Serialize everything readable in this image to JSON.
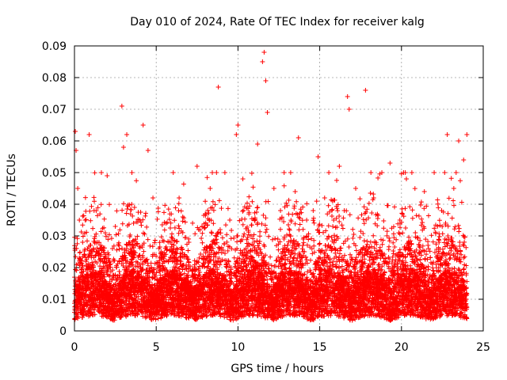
{
  "chart_data": {
    "type": "scatter",
    "title": "Day 010 of 2024, Rate Of TEC Index for receiver kalg",
    "xlabel": "GPS time / hours",
    "ylabel": "ROTI / TECUs",
    "xlim": [
      0,
      25
    ],
    "ylim": [
      0,
      0.09
    ],
    "xticks": [
      "0",
      "5",
      "10",
      "15",
      "20",
      "25"
    ],
    "yticks": [
      "0",
      "0.01",
      "0.02",
      "0.03",
      "0.04",
      "0.05",
      "0.06",
      "0.07",
      "0.08",
      "0.09"
    ],
    "grid": true,
    "marker": "+",
    "color": "#ff0000",
    "series": [
      {
        "name": "ROTI",
        "x": [
          0.05,
          0.1,
          0.2,
          0.3,
          0.5,
          0.9,
          1.2,
          1.6,
          2.0,
          2.5,
          2.9,
          3.0,
          3.2,
          3.5,
          4.0,
          4.2,
          4.5,
          4.8,
          5.3,
          6.0,
          6.4,
          7.0,
          7.5,
          7.8,
          8.3,
          8.8,
          9.2,
          9.5,
          9.9,
          10.0,
          10.3,
          10.8,
          11.2,
          11.5,
          11.6,
          11.7,
          11.8,
          12.2,
          12.6,
          13.2,
          13.5,
          13.7,
          14.2,
          14.6,
          14.9,
          15.3,
          15.8,
          16.2,
          16.5,
          16.7,
          16.8,
          17.2,
          17.8,
          18.3,
          18.8,
          19.3,
          19.9,
          20.3,
          20.8,
          21.4,
          22.0,
          22.3,
          22.8,
          23.2,
          23.5,
          23.8,
          24.0
        ],
        "y": [
          0.063,
          0.057,
          0.045,
          0.035,
          0.028,
          0.062,
          0.038,
          0.022,
          0.049,
          0.033,
          0.071,
          0.058,
          0.062,
          0.04,
          0.035,
          0.065,
          0.057,
          0.042,
          0.025,
          0.019,
          0.042,
          0.028,
          0.052,
          0.033,
          0.045,
          0.077,
          0.05,
          0.035,
          0.062,
          0.065,
          0.048,
          0.03,
          0.059,
          0.085,
          0.088,
          0.079,
          0.069,
          0.045,
          0.038,
          0.03,
          0.044,
          0.061,
          0.035,
          0.038,
          0.055,
          0.042,
          0.033,
          0.052,
          0.038,
          0.074,
          0.07,
          0.045,
          0.076,
          0.042,
          0.05,
          0.053,
          0.035,
          0.048,
          0.025,
          0.044,
          0.05,
          0.028,
          0.062,
          0.045,
          0.06,
          0.054,
          0.062
        ]
      }
    ]
  }
}
